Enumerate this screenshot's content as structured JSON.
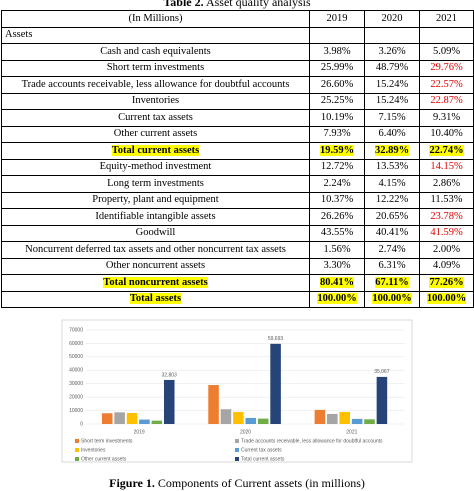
{
  "table": {
    "title_label": "Table 2.",
    "title_text": "Asset quality analysis",
    "header": [
      "(In Millions)",
      "2019",
      "2020",
      "2021"
    ],
    "rows": [
      {
        "cells": [
          "Assets",
          "",
          "",
          ""
        ]
      },
      {
        "cells": [
          "Cash and cash equivalents",
          "3.98%",
          "3.26%",
          "5.09%"
        ]
      },
      {
        "cells": [
          "Short term investments",
          "25.99%",
          "48.79%",
          "29.76%"
        ],
        "red": [
          3
        ]
      },
      {
        "cells": [
          "Trade accounts receivable, less allowance for doubtful accounts",
          "26.60%",
          "15.24%",
          "22.57%"
        ],
        "red": [
          3
        ]
      },
      {
        "cells": [
          "Inventories",
          "25.25%",
          "15.24%",
          "22.87%"
        ],
        "red": [
          3
        ]
      },
      {
        "cells": [
          "Current tax assets",
          "10.19%",
          "7.15%",
          "9.31%"
        ]
      },
      {
        "cells": [
          "Other current assets",
          "7.93%",
          "6.40%",
          "10.40%"
        ]
      },
      {
        "cells": [
          "Total current assets",
          "19.59%",
          "32.89%",
          "22.74%"
        ],
        "highlight": true
      },
      {
        "cells": [
          "Equity-method investment",
          "12.72%",
          "13.53%",
          "14.15%"
        ],
        "red": [
          3
        ]
      },
      {
        "cells": [
          "Long term investments",
          "2.24%",
          "4.15%",
          "2.86%"
        ]
      },
      {
        "cells": [
          "Property, plant and equipment",
          "10.37%",
          "12.22%",
          "11.53%"
        ]
      },
      {
        "cells": [
          "Identifiable intangible assets",
          "26.26%",
          "20.65%",
          "23.78%"
        ],
        "red": [
          3
        ]
      },
      {
        "cells": [
          "Goodwill",
          "43.55%",
          "40.41%",
          "41.59%"
        ],
        "red": [
          3
        ]
      },
      {
        "cells": [
          "Noncurrent deferred tax assets and other noncurrent tax assets",
          "1.56%",
          "2.74%",
          "2.00%"
        ]
      },
      {
        "cells": [
          "Other noncurrent assets",
          "3.30%",
          "6.31%",
          "4.09%"
        ]
      },
      {
        "cells": [
          "Total noncurrent assets",
          "80.41%",
          "67.11%",
          "77.26%"
        ],
        "highlight": true
      },
      {
        "cells": [
          "Total assets",
          "100.00%",
          "100.00%",
          "100.00%"
        ],
        "highlight": true
      }
    ]
  },
  "chart_data": {
    "type": "bar",
    "categories": [
      "2019",
      "2020",
      "2021"
    ],
    "ylim": [
      0,
      70000
    ],
    "yticks": [
      0,
      10000,
      20000,
      30000,
      40000,
      50000,
      60000,
      70000
    ],
    "series": [
      {
        "name": "Short term investments",
        "color": "#ed7d31",
        "values": [
          8000,
          29000,
          10500
        ]
      },
      {
        "name": "Trade accounts receivable, less allowance for doubtful accounts",
        "color": "#a5a5a5",
        "values": [
          8700,
          11000,
          7500
        ]
      },
      {
        "name": "Inventories",
        "color": "#ffc000",
        "values": [
          8200,
          9000,
          9000
        ]
      },
      {
        "name": "Current tax assets",
        "color": "#5b9bd5",
        "values": [
          3300,
          4500,
          3800
        ]
      },
      {
        "name": "Other current assets",
        "color": "#70ad47",
        "values": [
          2500,
          4000,
          3500
        ]
      },
      {
        "name": "Total current assets",
        "color": "#264478",
        "values": [
          32803,
          59693,
          35067
        ],
        "value_labels": [
          "32,803",
          "59,693",
          "35,067"
        ]
      }
    ]
  },
  "caption": {
    "label": "Figure 1.",
    "text": "Components of Current assets (in millions)"
  }
}
